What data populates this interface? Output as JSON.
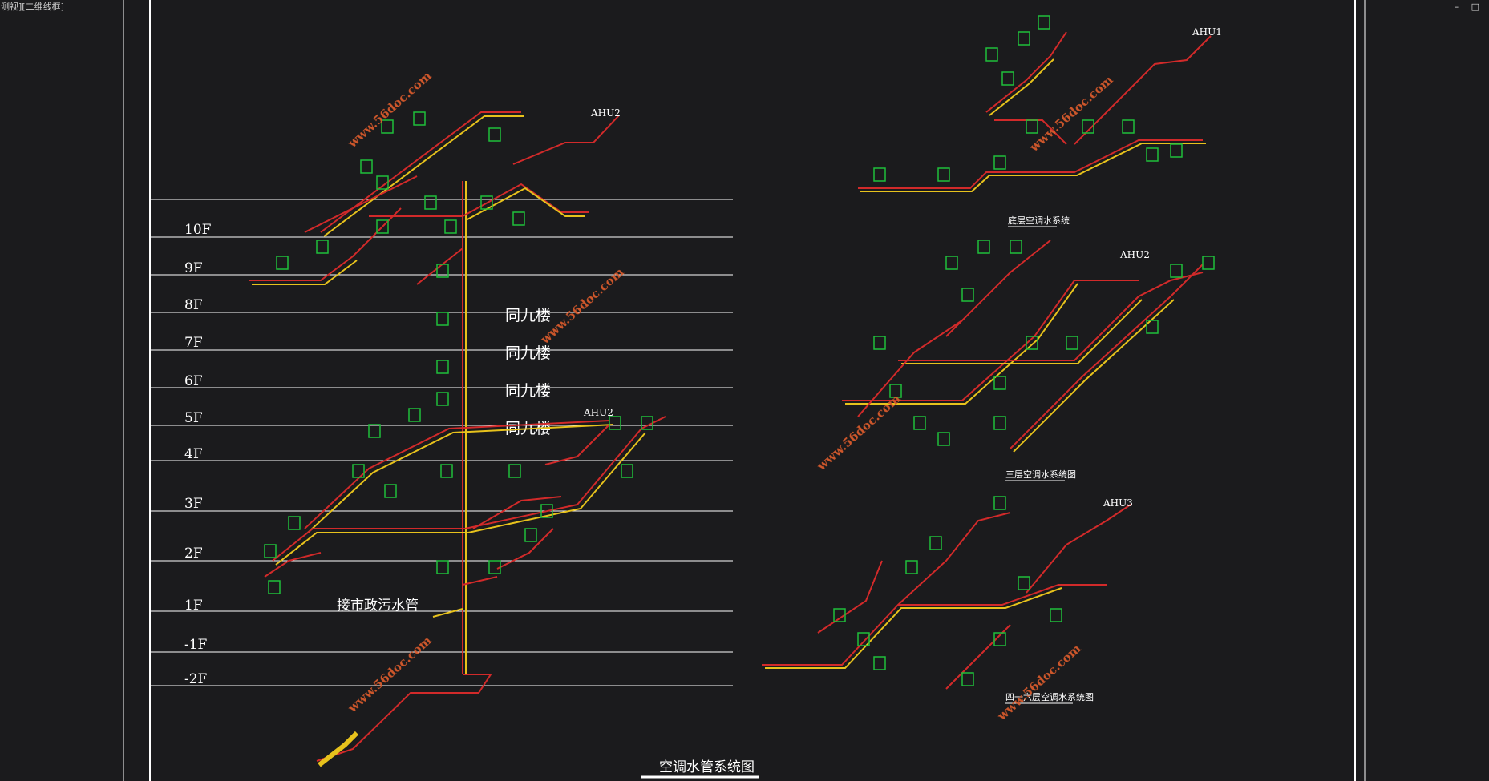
{
  "viewport_title": "测视][二维线框]",
  "window_controls": [
    "–",
    "□"
  ],
  "floor_labels": [
    "10F",
    "9F",
    "8F",
    "7F",
    "6F",
    "5F",
    "4F",
    "3F",
    "2F",
    "1F",
    "-1F",
    "-2F"
  ],
  "same_as_9_label": "同九楼",
  "sewer_note": "接市政污水管",
  "ahu_labels": {
    "left_top": "AHU2",
    "left_mid": "AHU2",
    "right_top": "AHU1",
    "right_mid": "AHU2",
    "right_bottom": "AHU3"
  },
  "captions": {
    "main": "空调水管系统图",
    "roof": "底层空调水系统",
    "third": "三层空调水系统图",
    "basement": "四一六层空调水系统图"
  },
  "watermark": "www.56doc.com",
  "colors": {
    "background": "#1b1b1d",
    "frame": "#ffffff",
    "pipe_red": "#d22a2a",
    "pipe_yellow": "#e7c21c",
    "pipe_green": "#1fbf3b",
    "watermark": "#d85b2d"
  }
}
